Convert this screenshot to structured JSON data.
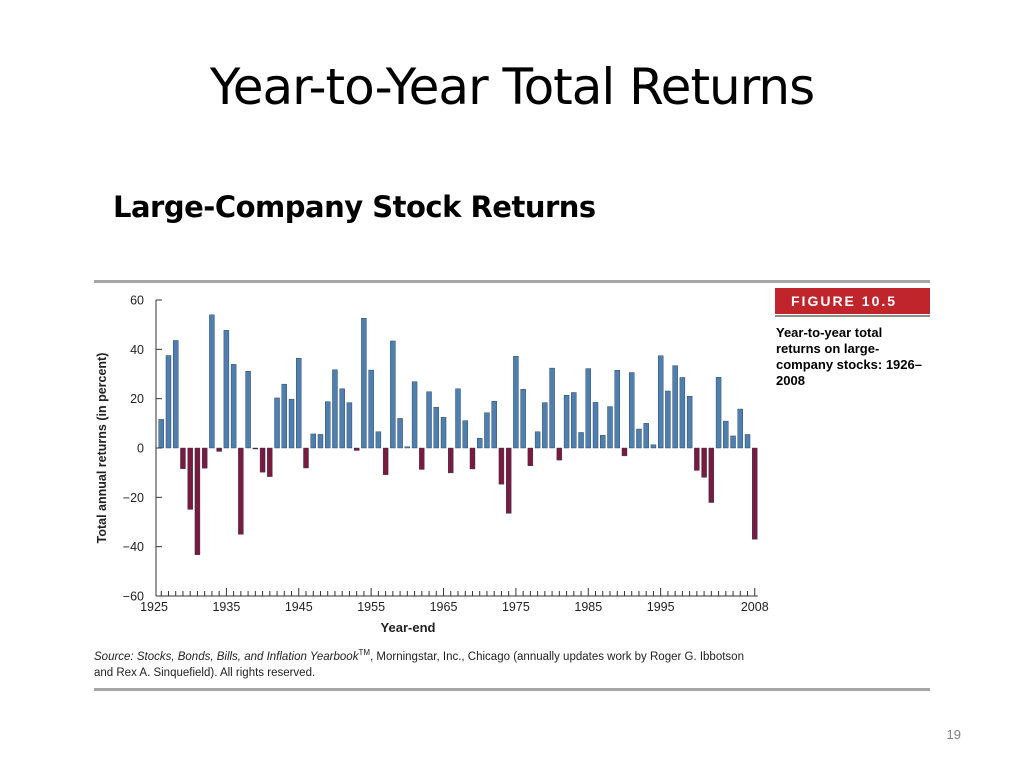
{
  "slide": {
    "title": "Year-to-Year Total Returns",
    "subtitle": "Large-Company Stock Returns",
    "page_number": "19"
  },
  "figure": {
    "label": "FIGURE 10.5",
    "caption": "Year-to-year total returns on large-company stocks: 1926–2008",
    "source_italic": "Source: Stocks, Bonds, Bills, and Inflation Yearbook",
    "source_tm": "TM",
    "source_rest": ", Morningstar, Inc., Chicago (annually updates work by Roger G. Ibbotson and Rex A. Sinquefield). All rights reserved."
  },
  "chart_data": {
    "type": "bar",
    "xlabel": "Year-end",
    "ylabel": "Total annual returns (in percent)",
    "ylim": [
      -60,
      60
    ],
    "yticks": [
      60,
      40,
      20,
      0,
      -20,
      -40,
      -60
    ],
    "ytick_labels": [
      "60",
      "40",
      "20",
      "0",
      "−20",
      "−40",
      "−60"
    ],
    "xtick_labels": [
      "1925",
      "1935",
      "1945",
      "1955",
      "1965",
      "1975",
      "1985",
      "1995",
      "2008"
    ],
    "xtick_years": [
      1925,
      1935,
      1945,
      1955,
      1965,
      1975,
      1985,
      1995,
      2008
    ],
    "xlim": [
      1925,
      2009
    ],
    "colors": {
      "positive": "#4f7fae",
      "negative": "#7a1a3f",
      "axis": "#333333"
    },
    "years": [
      1926,
      1927,
      1928,
      1929,
      1930,
      1931,
      1932,
      1933,
      1934,
      1935,
      1936,
      1937,
      1938,
      1939,
      1940,
      1941,
      1942,
      1943,
      1944,
      1945,
      1946,
      1947,
      1948,
      1949,
      1950,
      1951,
      1952,
      1953,
      1954,
      1955,
      1956,
      1957,
      1958,
      1959,
      1960,
      1961,
      1962,
      1963,
      1964,
      1965,
      1966,
      1967,
      1968,
      1969,
      1970,
      1971,
      1972,
      1973,
      1974,
      1975,
      1976,
      1977,
      1978,
      1979,
      1980,
      1981,
      1982,
      1983,
      1984,
      1985,
      1986,
      1987,
      1988,
      1989,
      1990,
      1991,
      1992,
      1993,
      1994,
      1995,
      1996,
      1997,
      1998,
      1999,
      2000,
      2001,
      2002,
      2003,
      2004,
      2005,
      2006,
      2007,
      2008
    ],
    "values": [
      11.6,
      37.5,
      43.6,
      -8.4,
      -24.9,
      -43.3,
      -8.2,
      54.0,
      -1.4,
      47.7,
      33.9,
      -35.0,
      31.1,
      -0.4,
      -9.8,
      -11.6,
      20.3,
      25.9,
      19.8,
      36.4,
      -8.1,
      5.7,
      5.5,
      18.8,
      31.7,
      24.0,
      18.4,
      -1.0,
      52.6,
      31.6,
      6.6,
      -10.8,
      43.4,
      12.0,
      0.5,
      26.9,
      -8.7,
      22.8,
      16.5,
      12.5,
      -10.1,
      24.0,
      11.1,
      -8.5,
      4.0,
      14.3,
      19.0,
      -14.7,
      -26.5,
      37.2,
      23.8,
      -7.2,
      6.6,
      18.4,
      32.4,
      -4.9,
      21.4,
      22.5,
      6.3,
      32.2,
      18.5,
      5.2,
      16.8,
      31.5,
      -3.2,
      30.6,
      7.7,
      10.0,
      1.3,
      37.4,
      23.1,
      33.4,
      28.6,
      21.0,
      -9.1,
      -11.9,
      -22.1,
      28.7,
      10.9,
      4.9,
      15.8,
      5.5,
      -37.0
    ]
  }
}
